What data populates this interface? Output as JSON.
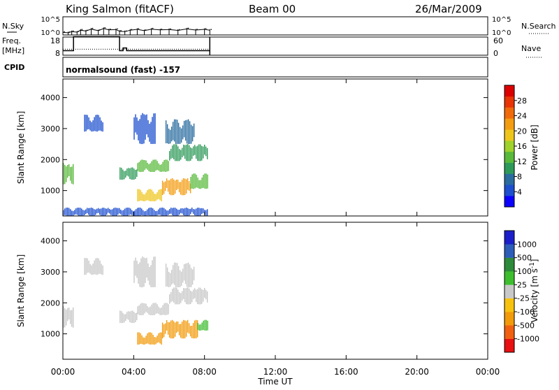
{
  "header": {
    "station": "King Salmon (fitACF)",
    "beam": "Beam 00",
    "date": "26/Mar/2009"
  },
  "panel_labels": {
    "nsky": "N.Sky",
    "nsearch": "N.Search",
    "freq_top": "Freq.",
    "freq_bottom": "[MHz]",
    "nave": "Nave",
    "cpid": "CPID",
    "cpid_text": "normalsound (fast) -157",
    "nsky_ticks": [
      "10^5",
      "10^0"
    ],
    "nsearch_ticks": [
      "10^5",
      "10^0"
    ],
    "freq_ticks": [
      "18",
      "8"
    ],
    "nave_ticks": [
      "60",
      "0"
    ]
  },
  "chart_data": [
    {
      "type": "line",
      "name": "N.Sky / N.Search noise",
      "yscale": "log",
      "ylim": [
        1,
        100000
      ],
      "x_hours": [
        0.0,
        0.3,
        0.5,
        0.8,
        1.0,
        1.3,
        1.6,
        2.0,
        2.3,
        2.6,
        3.0,
        3.2,
        3.5,
        3.8,
        4.2,
        4.6,
        5.0,
        5.5,
        6.0,
        6.5,
        7.0,
        7.5,
        8.0,
        8.3
      ],
      "values": [
        5,
        4,
        8,
        6,
        20,
        12,
        40,
        15,
        60,
        25,
        30,
        10,
        8,
        20,
        35,
        15,
        40,
        25,
        30,
        18,
        45,
        22,
        35,
        20
      ]
    },
    {
      "type": "line",
      "name": "Freq / Nave",
      "x_hours_freq": [
        0.0,
        0.6,
        0.6,
        3.2,
        3.2,
        3.4,
        3.4,
        3.6,
        3.6,
        8.3
      ],
      "freq_mhz": [
        10.5,
        10.5,
        18.2,
        18.2,
        10.5,
        10.5,
        12.0,
        12.0,
        10.5,
        10.5
      ],
      "nave_level": 20,
      "freq_ylim": [
        8,
        18
      ],
      "nave_ylim": [
        0,
        60
      ]
    },
    {
      "type": "heatmap",
      "title": "Power",
      "colorbar_label": "Power [dB]",
      "colorbar_ticks": [
        "28",
        "24",
        "20",
        "16",
        "12",
        "8",
        "4"
      ],
      "colorbar_range": [
        0,
        32
      ],
      "ylabel": "Slant Range [km]",
      "yticks": [
        "1000",
        "2000",
        "3000",
        "4000"
      ],
      "ylim": [
        180,
        4600
      ],
      "regions": [
        {
          "t0": 0.0,
          "t1": 0.6,
          "r0": 1200,
          "r1": 1900,
          "v": 12
        },
        {
          "t0": 3.2,
          "t1": 4.2,
          "r0": 1350,
          "r1": 1750,
          "v": 10
        },
        {
          "t0": 4.2,
          "t1": 6.0,
          "r0": 1600,
          "r1": 2000,
          "v": 13
        },
        {
          "t0": 6.0,
          "t1": 8.2,
          "r0": 1950,
          "r1": 2500,
          "v": 10
        },
        {
          "t0": 4.2,
          "t1": 5.6,
          "r0": 650,
          "r1": 1050,
          "v": 18
        },
        {
          "t0": 5.6,
          "t1": 7.2,
          "r0": 850,
          "r1": 1400,
          "v": 22
        },
        {
          "t0": 7.2,
          "t1": 8.2,
          "r0": 1050,
          "r1": 1550,
          "v": 13
        },
        {
          "t0": 1.2,
          "t1": 2.3,
          "r0": 2900,
          "r1": 3450,
          "v": 5
        },
        {
          "t0": 4.0,
          "t1": 5.2,
          "r0": 2500,
          "r1": 3500,
          "v": 5
        },
        {
          "t0": 5.8,
          "t1": 7.4,
          "r0": 2500,
          "r1": 3300,
          "v": 6
        },
        {
          "t0": 0.0,
          "t1": 8.2,
          "r0": 180,
          "r1": 450,
          "v": 4
        }
      ]
    },
    {
      "type": "heatmap",
      "title": "Velocity",
      "colorbar_label": "Velocity [m s^-1]",
      "colorbar_ticks": [
        "1000",
        "500",
        "100",
        "25",
        "-25",
        "-100",
        "-500",
        "-1000"
      ],
      "ylabel": "Slant Range [km]",
      "yticks": [
        "1000",
        "2000",
        "3000",
        "4000"
      ],
      "ylim": [
        180,
        4600
      ],
      "regions": [
        {
          "t0": 0.0,
          "t1": 0.6,
          "r0": 1200,
          "r1": 1900,
          "v": 0
        },
        {
          "t0": 3.2,
          "t1": 4.2,
          "r0": 1350,
          "r1": 1750,
          "v": 0
        },
        {
          "t0": 4.2,
          "t1": 6.0,
          "r0": 1600,
          "r1": 2000,
          "v": 0
        },
        {
          "t0": 6.0,
          "t1": 8.2,
          "r0": 1950,
          "r1": 2500,
          "v": 0
        },
        {
          "t0": 4.2,
          "t1": 5.6,
          "r0": 650,
          "r1": 1050,
          "v": -150
        },
        {
          "t0": 5.6,
          "t1": 7.6,
          "r0": 850,
          "r1": 1450,
          "v": -200
        },
        {
          "t0": 7.6,
          "t1": 8.2,
          "r0": 1100,
          "r1": 1450,
          "v": 60
        },
        {
          "t0": 1.2,
          "t1": 2.3,
          "r0": 2900,
          "r1": 3450,
          "v": 0
        },
        {
          "t0": 4.0,
          "t1": 5.2,
          "r0": 2500,
          "r1": 3500,
          "v": 0
        },
        {
          "t0": 5.8,
          "t1": 7.4,
          "r0": 2500,
          "r1": 3300,
          "v": 0
        }
      ]
    }
  ],
  "x_axis": {
    "ticks": [
      "00:00",
      "04:00",
      "08:00",
      "12:00",
      "16:00",
      "20:00",
      "00:00"
    ],
    "label": "Time UT"
  },
  "power_colors": [
    "#0c00ff",
    "#1d4fcf",
    "#2a6ca0",
    "#2e9a59",
    "#58b93a",
    "#9fd22b",
    "#eec51b",
    "#f39c11",
    "#f06a0b",
    "#e93406",
    "#dc0000"
  ],
  "velocity_colors": [
    "#e81010",
    "#f06010",
    "#f29a0a",
    "#f7c20e",
    "#c8c8c8",
    "#3dbe2e",
    "#2d8a3a",
    "#2c5db8",
    "#1b1fc9"
  ]
}
